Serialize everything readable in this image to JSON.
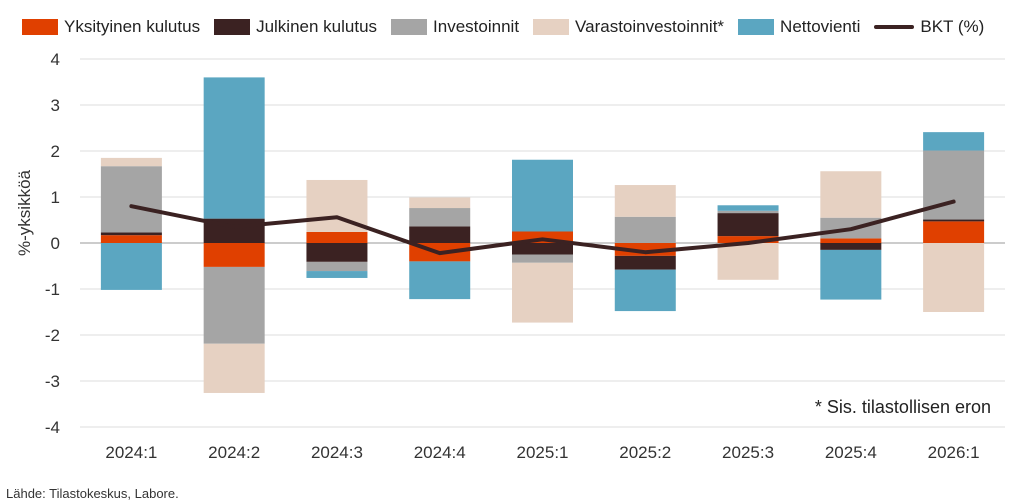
{
  "legend": [
    {
      "name": "Yksityinen kulutus",
      "color": "#e04000",
      "kind": "bar"
    },
    {
      "name": "Julkinen kulutus",
      "color": "#3b2222",
      "kind": "bar"
    },
    {
      "name": "Investoinnit",
      "color": "#a5a5a5",
      "kind": "bar"
    },
    {
      "name": "Varastoinvestoinnit*",
      "color": "#e6d1c2",
      "kind": "bar"
    },
    {
      "name": "Nettovienti",
      "color": "#5ba6c1",
      "kind": "bar"
    },
    {
      "name": "BKT (%)",
      "color": "#3b2222",
      "kind": "line"
    }
  ],
  "note": "* Sis. tilastollisen eron",
  "source": "Lähde: Tilastokeskus, Labore.",
  "chart_data": {
    "type": "bar",
    "stacked": true,
    "categories": [
      "2024:1",
      "2024:2",
      "2024:3",
      "2024:4",
      "2025:1",
      "2025:2",
      "2025:3",
      "2025:4",
      "2026:1"
    ],
    "ylabel": "%-yksikköä",
    "ylim": [
      -4,
      4
    ],
    "yticks": [
      "4",
      "3",
      "2",
      "1",
      "0",
      "-1",
      "-2",
      "-3",
      "-4"
    ],
    "grid": true,
    "legend_position": "top",
    "series": [
      {
        "name": "Yksityinen kulutus",
        "color": "#e04000",
        "values": [
          0.17,
          -0.52,
          0.24,
          -0.4,
          0.25,
          -0.28,
          0.15,
          0.1,
          0.47
        ]
      },
      {
        "name": "Julkinen kulutus",
        "color": "#3b2222",
        "values": [
          0.06,
          0.53,
          -0.41,
          0.36,
          -0.25,
          -0.3,
          0.5,
          -0.15,
          0.04
        ]
      },
      {
        "name": "Investoinnit",
        "color": "#a5a5a5",
        "values": [
          1.44,
          -1.67,
          -0.2,
          0.4,
          -0.18,
          0.57,
          0.05,
          0.45,
          1.5
        ]
      },
      {
        "name": "Varastoinvestoinnit*",
        "color": "#e6d1c2",
        "values": [
          0.18,
          -1.07,
          1.13,
          0.23,
          -1.3,
          0.69,
          -0.8,
          1.01,
          -1.5
        ]
      },
      {
        "name": "Nettovienti",
        "color": "#5ba6c1",
        "values": [
          -1.02,
          3.07,
          -0.15,
          -0.82,
          1.56,
          -0.9,
          0.12,
          -1.08,
          0.4
        ]
      },
      {
        "name": "BKT (%)",
        "color": "#3b2222",
        "type": "line",
        "values": [
          0.8,
          0.35,
          0.56,
          -0.22,
          0.08,
          -0.2,
          0.0,
          0.3,
          0.9
        ]
      }
    ]
  }
}
